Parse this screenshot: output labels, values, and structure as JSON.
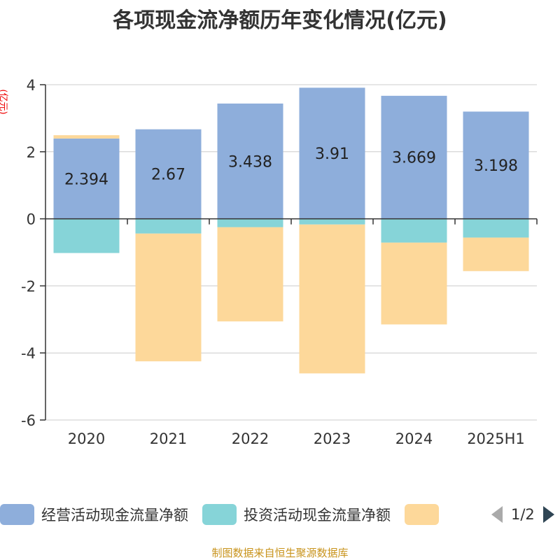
{
  "title": "各项现金流净额历年变化情况(亿元)",
  "chart_data": {
    "type": "bar",
    "stacked": true,
    "title": "各项现金流净额历年变化情况(亿元)",
    "ylabel": "(亿元)",
    "ylim": [
      -6,
      4
    ],
    "yticks": [
      4,
      2,
      0,
      -2,
      -4,
      -6
    ],
    "grid": true,
    "legend_position": "bottom",
    "categories": [
      "2020",
      "2021",
      "2022",
      "2023",
      "2024",
      "2025H1"
    ],
    "series": [
      {
        "name": "经营活动现金流量净额",
        "color": "#8eaedb",
        "values": [
          2.394,
          2.67,
          3.438,
          3.91,
          3.669,
          3.198
        ],
        "labels": [
          "2.394",
          "2.67",
          "3.438",
          "3.91",
          "3.669",
          "3.198"
        ]
      },
      {
        "name": "投资活动现金流量净额",
        "color": "#86d4d8",
        "values": [
          -1.02,
          -0.44,
          -0.25,
          -0.17,
          -0.71,
          -0.56
        ]
      },
      {
        "name": "",
        "color": "#fdd89a",
        "values": [
          0.1,
          -3.81,
          -2.81,
          -4.44,
          -2.44,
          -1.0
        ]
      }
    ]
  },
  "legend": {
    "page": "1/2"
  },
  "source": "制图数据来自恒生聚源数据库"
}
